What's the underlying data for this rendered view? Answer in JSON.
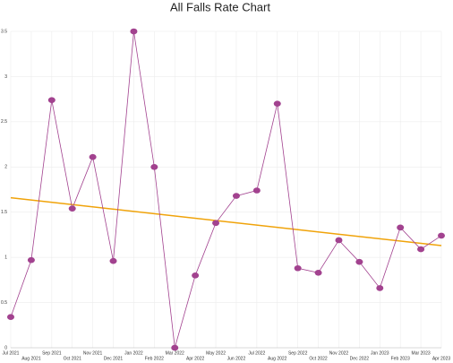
{
  "chart_data": {
    "type": "line",
    "title": "All Falls Rate Chart",
    "categories": [
      "Jul 2021",
      "Aug 2021",
      "Sep 2021",
      "Oct 2021",
      "Nov 2021",
      "Dec 2021",
      "Jan 2022",
      "Feb 2022",
      "Mar 2022",
      "Apr 2022",
      "May 2022",
      "Jun 2022",
      "Jul 2022",
      "Aug 2022",
      "Sep 2022",
      "Oct 2022",
      "Nov 2022",
      "Dec 2022",
      "Jan 2023",
      "Feb 2023",
      "Mar 2023",
      "Apr 2023"
    ],
    "series": [
      {
        "name": "All Falls Rate",
        "color": "#a2428f",
        "values": [
          0.34,
          0.97,
          2.74,
          1.54,
          2.11,
          0.96,
          3.5,
          2.0,
          0,
          0.8,
          1.38,
          1.68,
          1.74,
          2.7,
          0.88,
          0.83,
          1.19,
          0.95,
          0.66,
          1.33,
          1.09,
          1.24
        ]
      }
    ],
    "trend": {
      "color": "#f0a30a",
      "start": 1.66,
      "end": 1.13
    },
    "ylim": [
      0,
      3.5
    ],
    "yticks": [
      0,
      0.5,
      1,
      1.5,
      2,
      2.5,
      3,
      3.5
    ],
    "grid": true
  }
}
